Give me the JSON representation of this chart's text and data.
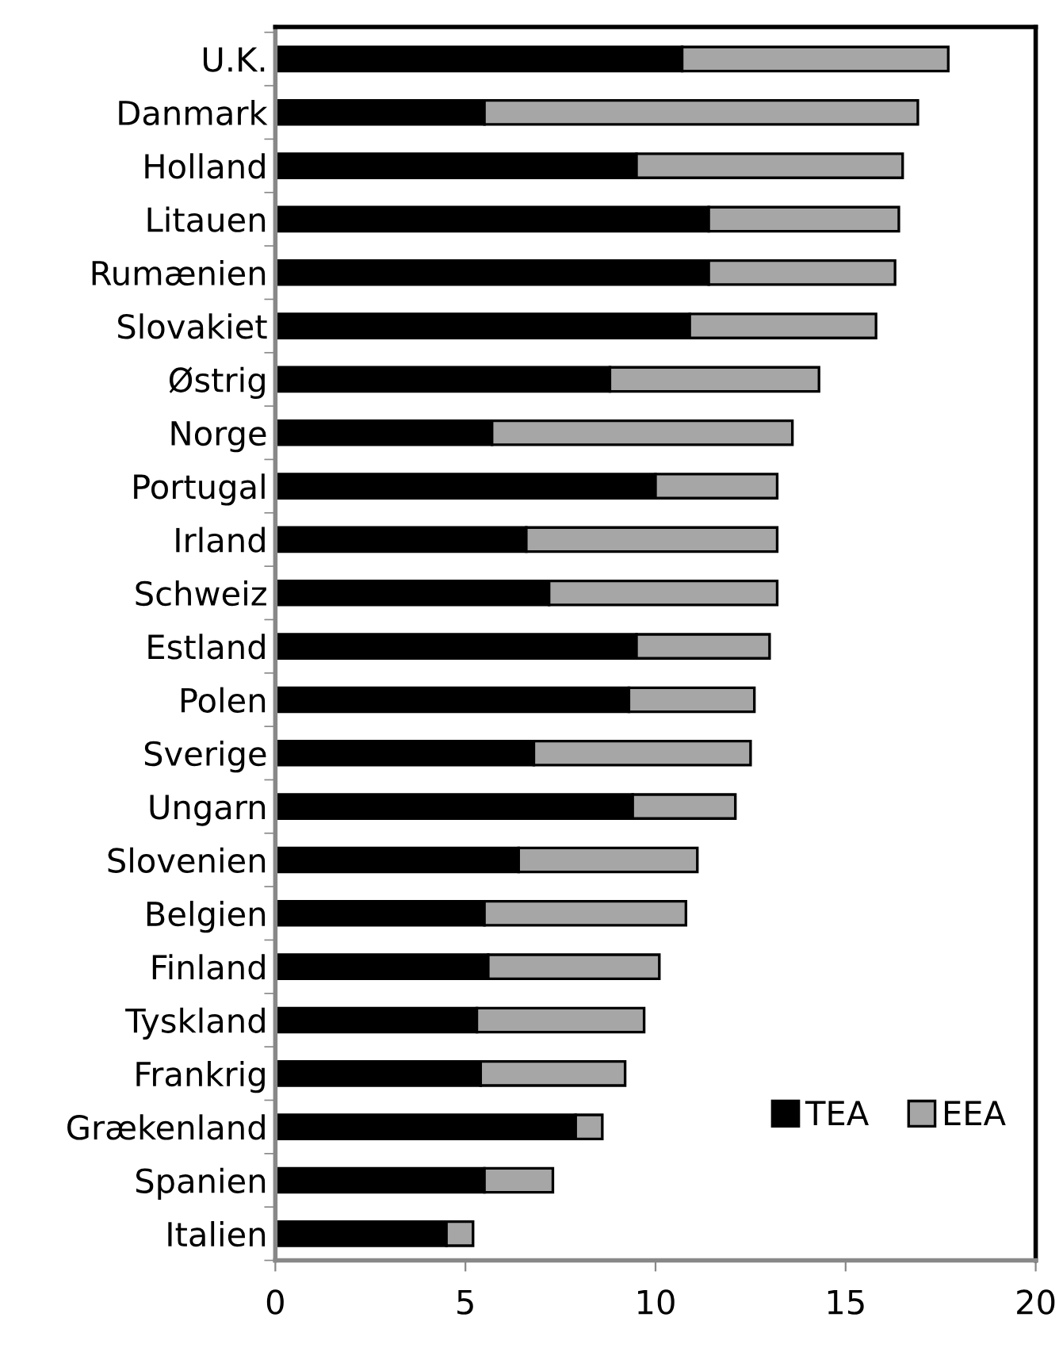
{
  "chart_data": {
    "type": "bar",
    "orientation": "horizontal",
    "stacked": true,
    "categories": [
      "U.K.",
      "Danmark",
      "Holland",
      "Litauen",
      "Rumænien",
      "Slovakiet",
      "Østrig",
      "Norge",
      "Portugal",
      "Irland",
      "Schweiz",
      "Estland",
      "Polen",
      "Sverige",
      "Ungarn",
      "Slovenien",
      "Belgien",
      "Finland",
      "Tyskland",
      "Frankrig",
      "Grækenland",
      "Spanien",
      "Italien"
    ],
    "series": [
      {
        "name": "TEA",
        "color": "#000000",
        "values": [
          10.7,
          5.5,
          9.5,
          11.4,
          11.4,
          10.9,
          8.8,
          5.7,
          10.0,
          6.6,
          7.2,
          9.5,
          9.3,
          6.8,
          9.4,
          6.4,
          5.5,
          5.6,
          5.3,
          5.4,
          7.9,
          5.5,
          4.5
        ]
      },
      {
        "name": "EEA",
        "color": "#a6a6a6",
        "values": [
          7.0,
          11.4,
          7.0,
          5.0,
          4.9,
          4.9,
          5.5,
          7.9,
          3.2,
          6.6,
          6.0,
          3.5,
          3.3,
          5.7,
          2.7,
          4.7,
          5.3,
          4.5,
          4.4,
          3.8,
          0.7,
          1.8,
          0.7
        ]
      }
    ],
    "xlim": [
      0,
      20
    ],
    "xticks": [
      0,
      5,
      10,
      15,
      20
    ],
    "grid": false,
    "legend": "bottom right"
  }
}
